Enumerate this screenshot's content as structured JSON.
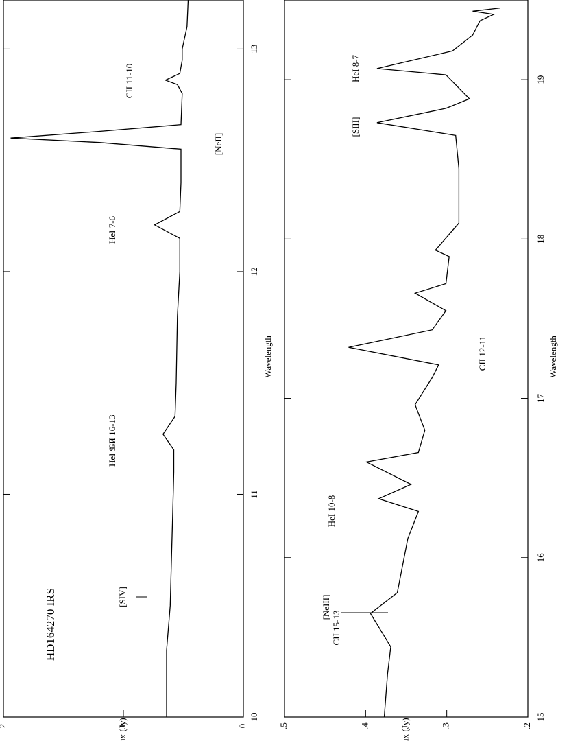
{
  "chart_data": [
    {
      "type": "line",
      "xlabel": "Wavelength",
      "ylabel": "Flux (Jy)",
      "xlim": [
        10,
        13.22
      ],
      "xticks": [
        10,
        11,
        12,
        13
      ],
      "ylim": [
        0,
        2
      ],
      "yticks": [
        0,
        1,
        2
      ],
      "annotations": [
        "HD164270 IRS",
        "[SIV]",
        "HeI 9-7",
        "CII 16-13",
        "HeI 7-6",
        "[NeII]",
        "CII 11-10"
      ],
      "series": [
        {
          "color": "#000000",
          "x": [
            10,
            10.3,
            10.5,
            10.7,
            10.9,
            11.1,
            11.2,
            11.27,
            11.35,
            11.5,
            11.8,
            12.0,
            12.15,
            12.21,
            12.27,
            12.4,
            12.55,
            12.58,
            12.6,
            12.63,
            12.66,
            12.8,
            12.84,
            12.86,
            12.89,
            12.95,
            13.0,
            13.1,
            13.22
          ],
          "values": [
            0.64,
            0.64,
            0.61,
            0.6,
            0.59,
            0.58,
            0.58,
            0.67,
            0.57,
            0.56,
            0.55,
            0.53,
            0.53,
            0.74,
            0.53,
            0.52,
            0.52,
            1.2,
            1.94,
            1.2,
            0.52,
            0.51,
            0.55,
            0.65,
            0.53,
            0.51,
            0.51,
            0.47,
            0.46
          ]
        }
      ]
    },
    {
      "type": "line",
      "xlabel": "Wavelength",
      "ylabel": "Flux (Jy)",
      "xlim": [
        15,
        19.5
      ],
      "xticks": [
        15,
        16,
        17,
        18,
        19
      ],
      "ylim": [
        0.2,
        0.5
      ],
      "yticks": [
        {
          "value": 0.2,
          "label": ".2"
        },
        {
          "value": 0.3,
          "label": ".3"
        },
        {
          "value": 0.4,
          "label": ".4"
        },
        {
          "value": 0.5,
          "label": ".5"
        }
      ],
      "annotations": [
        "CII 15-13",
        "[NeIII]",
        "HeI 10-8",
        "CII 12-11",
        "[SIII]",
        "HeI 8-7"
      ],
      "series": [
        {
          "color": "#000000",
          "x": [
            15,
            15.27,
            15.44,
            15.65,
            15.78,
            16.12,
            16.29,
            16.37,
            16.46,
            16.6,
            16.66,
            16.8,
            16.96,
            17.13,
            17.21,
            17.32,
            17.43,
            17.55,
            17.66,
            17.72,
            17.89,
            17.93,
            18.1,
            18.44,
            18.65,
            18.73,
            18.82,
            18.88,
            19.03,
            19.07,
            19.18,
            19.28,
            19.37,
            19.41,
            19.43,
            19.45
          ],
          "values": [
            0.377,
            0.373,
            0.369,
            0.394,
            0.361,
            0.348,
            0.335,
            0.384,
            0.344,
            0.399,
            0.335,
            0.327,
            0.339,
            0.318,
            0.31,
            0.421,
            0.318,
            0.301,
            0.339,
            0.301,
            0.297,
            0.314,
            0.285,
            0.285,
            0.289,
            0.386,
            0.301,
            0.272,
            0.301,
            0.386,
            0.293,
            0.268,
            0.259,
            0.242,
            0.268,
            0.234
          ]
        }
      ]
    }
  ]
}
